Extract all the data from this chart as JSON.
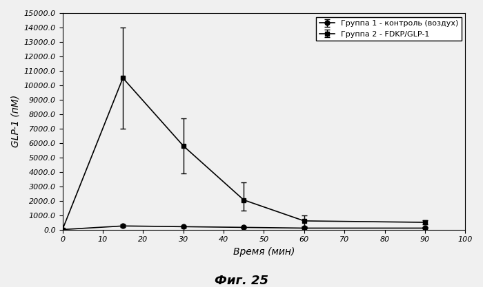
{
  "group1_x": [
    0,
    15,
    30,
    45,
    60,
    90
  ],
  "group1_y": [
    0,
    250,
    200,
    150,
    100,
    100
  ],
  "group1_yerr_upper": [
    0,
    100,
    80,
    60,
    50,
    50
  ],
  "group1_yerr_lower": [
    0,
    100,
    80,
    60,
    50,
    50
  ],
  "group1_label": "Группа 1 - контроль (воздух)",
  "group2_x": [
    0,
    15,
    30,
    45,
    60,
    90
  ],
  "group2_y": [
    0,
    10500,
    5800,
    2050,
    600,
    500
  ],
  "group2_yerr_upper": [
    0,
    3500,
    1900,
    1200,
    400,
    150
  ],
  "group2_yerr_lower": [
    0,
    3500,
    1900,
    750,
    400,
    150
  ],
  "group2_label": "Группа 2 - FDKP/GLP-1",
  "xlabel": "Время (мин)",
  "ylabel": "GLP-1 (пМ)",
  "title": "Фиг. 25",
  "xlim": [
    0,
    100
  ],
  "ylim": [
    0,
    15000
  ],
  "yticks": [
    0,
    1000,
    2000,
    3000,
    4000,
    5000,
    6000,
    7000,
    8000,
    9000,
    10000,
    11000,
    12000,
    13000,
    14000,
    15000
  ],
  "xticks": [
    0,
    10,
    20,
    30,
    40,
    50,
    60,
    70,
    80,
    90,
    100
  ],
  "background_color": "#f0f0f0",
  "line_color": "#000000",
  "marker_color": "#000000"
}
